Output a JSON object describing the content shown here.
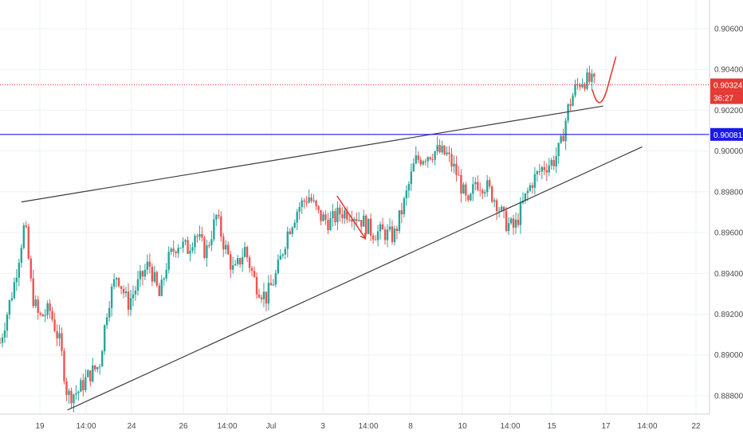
{
  "chart_data": {
    "type": "candlestick",
    "title": "",
    "xlabel": "",
    "ylabel": "",
    "ylim": [
      0.8871,
      0.9074
    ],
    "grid": true,
    "y_ticks": [
      "0.90600",
      "0.90400",
      "0.90200",
      "0.90000",
      "0.89800",
      "0.89600",
      "0.89400",
      "0.89200",
      "0.89000",
      "0.88800"
    ],
    "x_ticks": [
      "19",
      "14:00",
      "24",
      "26",
      "14:00",
      "Jul",
      "3",
      "14:00",
      "8",
      "10",
      "14:00",
      "15",
      "17",
      "14:00",
      "22"
    ],
    "price_labels": {
      "current_price": "0.90324",
      "countdown": "36:27",
      "level_price": "0.90081"
    },
    "levels": {
      "current": 0.90324,
      "horizontal_line": 0.90081
    },
    "close_path": [
      [
        0.0,
        0.8906
      ],
      [
        0.02,
        0.8935
      ],
      [
        0.035,
        0.8965
      ],
      [
        0.045,
        0.893
      ],
      [
        0.055,
        0.8918
      ],
      [
        0.07,
        0.8922
      ],
      [
        0.085,
        0.8905
      ],
      [
        0.095,
        0.888
      ],
      [
        0.11,
        0.8882
      ],
      [
        0.125,
        0.889
      ],
      [
        0.14,
        0.8895
      ],
      [
        0.152,
        0.8925
      ],
      [
        0.165,
        0.894
      ],
      [
        0.18,
        0.8925
      ],
      [
        0.195,
        0.8935
      ],
      [
        0.21,
        0.8945
      ],
      [
        0.225,
        0.8928
      ],
      [
        0.235,
        0.8945
      ],
      [
        0.25,
        0.8955
      ],
      [
        0.265,
        0.8952
      ],
      [
        0.275,
        0.896
      ],
      [
        0.29,
        0.895
      ],
      [
        0.305,
        0.8968
      ],
      [
        0.315,
        0.8955
      ],
      [
        0.33,
        0.894
      ],
      [
        0.345,
        0.8952
      ],
      [
        0.36,
        0.8935
      ],
      [
        0.375,
        0.8928
      ],
      [
        0.39,
        0.894
      ],
      [
        0.405,
        0.896
      ],
      [
        0.42,
        0.8972
      ],
      [
        0.435,
        0.8978
      ],
      [
        0.45,
        0.8968
      ],
      [
        0.465,
        0.8965
      ],
      [
        0.48,
        0.897
      ],
      [
        0.495,
        0.897
      ],
      [
        0.51,
        0.8966
      ],
      [
        0.525,
        0.896
      ],
      [
        0.54,
        0.896
      ],
      [
        0.555,
        0.8958
      ],
      [
        0.57,
        0.8975
      ],
      [
        0.585,
        0.8995
      ],
      [
        0.6,
        0.8998
      ],
      [
        0.615,
        0.9
      ],
      [
        0.63,
        0.8998
      ],
      [
        0.645,
        0.8988
      ],
      [
        0.66,
        0.8972
      ],
      [
        0.67,
        0.8985
      ],
      [
        0.685,
        0.8983
      ],
      [
        0.7,
        0.8975
      ],
      [
        0.712,
        0.8965
      ],
      [
        0.725,
        0.8962
      ],
      [
        0.738,
        0.8975
      ],
      [
        0.75,
        0.8985
      ],
      [
        0.765,
        0.8992
      ],
      [
        0.78,
        0.8995
      ],
      [
        0.79,
        0.9002
      ],
      [
        0.8,
        0.902
      ],
      [
        0.81,
        0.903
      ],
      [
        0.82,
        0.9035
      ],
      [
        0.832,
        0.9034
      ],
      [
        0.84,
        0.9032
      ]
    ],
    "trendlines": [
      {
        "name": "upper",
        "start": [
          0.03,
          0.8975
        ],
        "end": [
          0.85,
          0.9022
        ]
      },
      {
        "name": "lower",
        "start": [
          0.095,
          0.8873
        ],
        "end": [
          0.905,
          0.9002
        ]
      }
    ],
    "annotations": [
      {
        "type": "arrow",
        "color": "#e53935",
        "path": [
          [
            0.475,
            0.8978
          ],
          [
            0.515,
            0.8957
          ]
        ]
      },
      {
        "type": "projection",
        "color": "#e53935",
        "path": [
          [
            0.835,
            0.903
          ],
          [
            0.845,
            0.9022
          ],
          [
            0.857,
            0.9032
          ],
          [
            0.868,
            0.9046
          ]
        ]
      }
    ],
    "colors": {
      "up": "#26a69a",
      "down": "#ef5350",
      "trendline": "#3c3c3c",
      "level_line": "#1a1ae6",
      "current_price_line": "#e53935",
      "annotation": "#e53935",
      "grid": "#eef0f3"
    }
  }
}
